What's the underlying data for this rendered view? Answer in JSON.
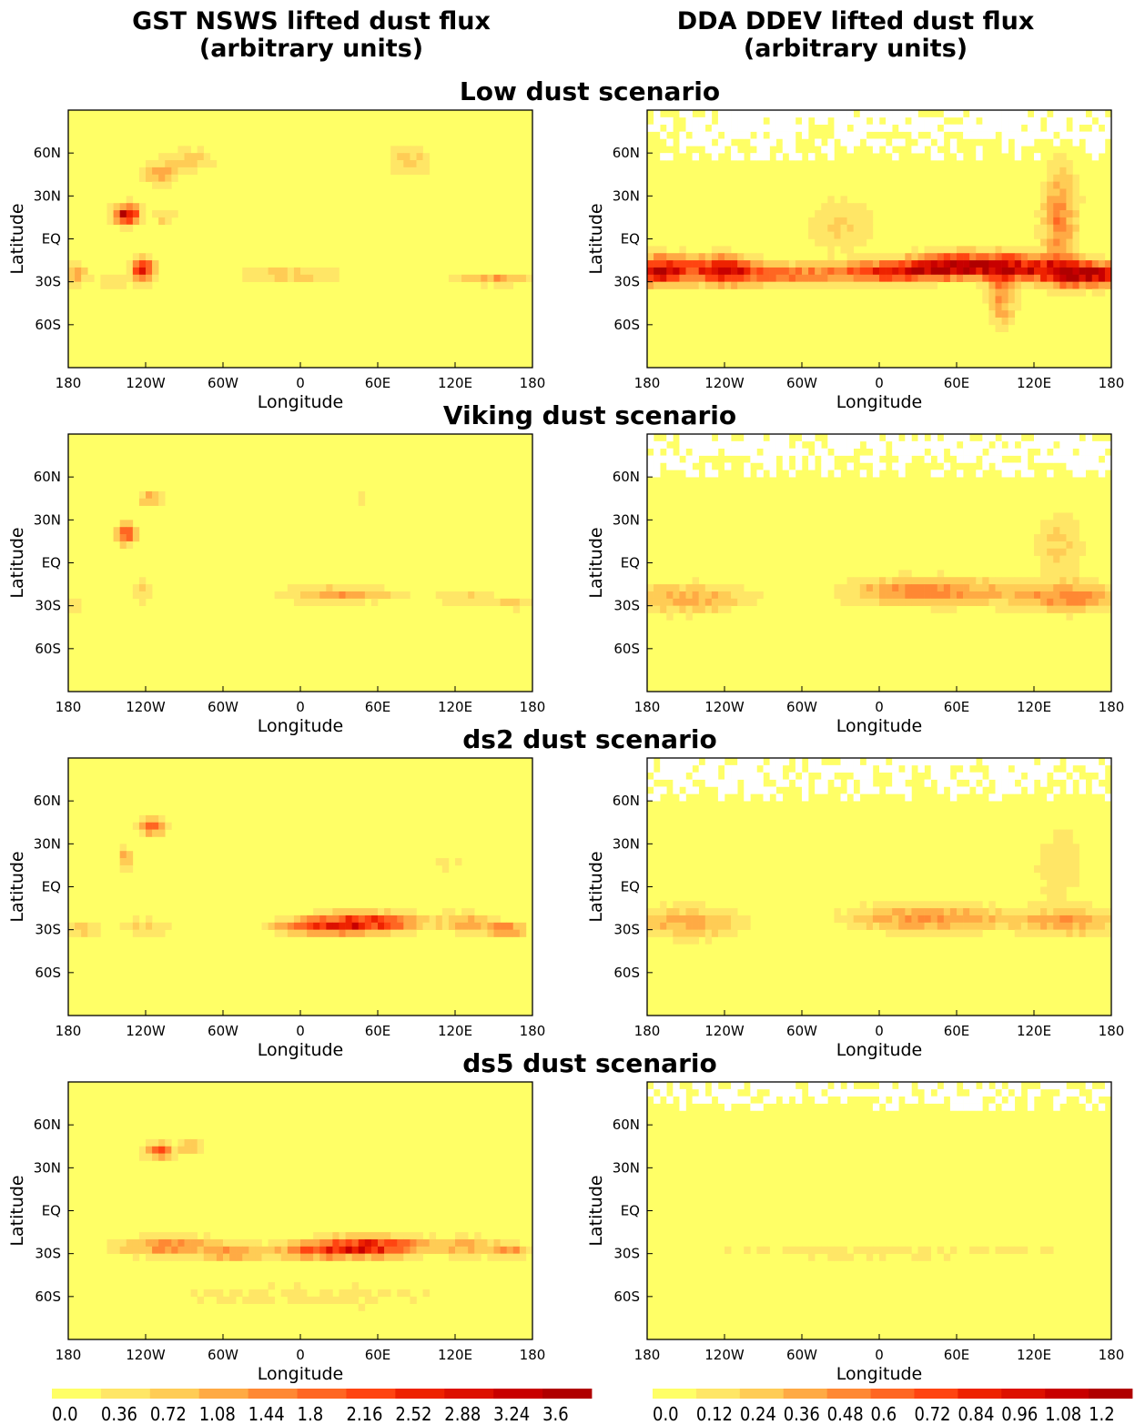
{
  "column_titles": [
    [
      "GST NSWS lifted dust flux",
      "(arbitrary units)"
    ],
    [
      "DDA DDEV lifted dust flux",
      "(arbitrary units)"
    ]
  ],
  "chart_data": {
    "type": "heatmap",
    "rows": [
      {
        "title": "Low dust scenario",
        "panels": [
          {
            "x_ticks": [
              "180",
              "120W",
              "60W",
              "0",
              "60E",
              "120E",
              "180"
            ],
            "y_ticks": [
              "60N",
              "30N",
              "EQ",
              "30S",
              "60S"
            ],
            "xlabel": "Longitude",
            "ylabel": "Latitude",
            "xlim": [
              -180,
              180
            ],
            "ylim": [
              -90,
              90
            ],
            "background_level": 0,
            "blobs": [
              {
                "lon": -135,
                "lat": 17,
                "sx": 7,
                "sy": 5,
                "v": 3.5
              },
              {
                "lon": -122,
                "lat": -22,
                "sx": 6,
                "sy": 6,
                "v": 3.1
              },
              {
                "lon": -110,
                "lat": 45,
                "sx": 10,
                "sy": 5,
                "v": 1.4
              },
              {
                "lon": -85,
                "lat": 55,
                "sx": 15,
                "sy": 6,
                "v": 0.9
              },
              {
                "lon": -175,
                "lat": -25,
                "sx": 8,
                "sy": 5,
                "v": 1.3
              },
              {
                "lon": -145,
                "lat": -30,
                "sx": 8,
                "sy": 3,
                "v": 0.8
              },
              {
                "lon": -105,
                "lat": 15,
                "sx": 6,
                "sy": 3,
                "v": 1.0
              },
              {
                "lon": -10,
                "lat": -25,
                "sx": 30,
                "sy": 4,
                "v": 1.0
              },
              {
                "lon": 85,
                "lat": 55,
                "sx": 12,
                "sy": 8,
                "v": 0.9
              },
              {
                "lon": 150,
                "lat": -28,
                "sx": 25,
                "sy": 3,
                "v": 1.3
              }
            ]
          },
          {
            "x_ticks": [
              "180",
              "120W",
              "60W",
              "0",
              "60E",
              "120E",
              "180"
            ],
            "y_ticks": [
              "60N",
              "30N",
              "EQ",
              "30S",
              "60S"
            ],
            "xlabel": "Longitude",
            "ylabel": "Latitude",
            "xlim": [
              -180,
              180
            ],
            "ylim": [
              -90,
              90
            ],
            "background_level": 0,
            "north_mask_lat": 55,
            "blobs": [
              {
                "lon": -170,
                "lat": -22,
                "sx": 18,
                "sy": 7,
                "v": 1.1
              },
              {
                "lon": -120,
                "lat": -22,
                "sx": 18,
                "sy": 7,
                "v": 1.0
              },
              {
                "lon": -70,
                "lat": -25,
                "sx": 25,
                "sy": 5,
                "v": 0.6
              },
              {
                "lon": 10,
                "lat": -23,
                "sx": 30,
                "sy": 5,
                "v": 1.0
              },
              {
                "lon": 60,
                "lat": -18,
                "sx": 25,
                "sy": 6,
                "v": 1.0
              },
              {
                "lon": 110,
                "lat": -20,
                "sx": 25,
                "sy": 6,
                "v": 0.9
              },
              {
                "lon": 160,
                "lat": -25,
                "sx": 22,
                "sy": 6,
                "v": 1.2
              },
              {
                "lon": 95,
                "lat": -40,
                "sx": 8,
                "sy": 15,
                "v": 0.5
              },
              {
                "lon": 140,
                "lat": 15,
                "sx": 10,
                "sy": 25,
                "v": 0.55
              },
              {
                "lon": -30,
                "lat": 10,
                "sx": 20,
                "sy": 15,
                "v": 0.25
              }
            ]
          }
        ]
      },
      {
        "title": "Viking dust scenario",
        "panels": [
          {
            "x_ticks": [
              "180",
              "120W",
              "60W",
              "0",
              "60E",
              "120E",
              "180"
            ],
            "y_ticks": [
              "60N",
              "30N",
              "EQ",
              "30S",
              "60S"
            ],
            "xlabel": "Longitude",
            "ylabel": "Latitude",
            "xlim": [
              -180,
              180
            ],
            "ylim": [
              -90,
              90
            ],
            "background_level": 0,
            "blobs": [
              {
                "lon": -135,
                "lat": 20,
                "sx": 5,
                "sy": 5,
                "v": 2.6
              },
              {
                "lon": -115,
                "lat": 45,
                "sx": 8,
                "sy": 4,
                "v": 1.3
              },
              {
                "lon": -122,
                "lat": -20,
                "sx": 5,
                "sy": 8,
                "v": 0.7
              },
              {
                "lon": -175,
                "lat": -28,
                "sx": 6,
                "sy": 4,
                "v": 0.7
              },
              {
                "lon": 30,
                "lat": -22,
                "sx": 35,
                "sy": 4,
                "v": 1.3
              },
              {
                "lon": 130,
                "lat": -25,
                "sx": 15,
                "sy": 4,
                "v": 0.8
              },
              {
                "lon": 165,
                "lat": -28,
                "sx": 10,
                "sy": 3,
                "v": 1.0
              },
              {
                "lon": 50,
                "lat": 45,
                "sx": 5,
                "sy": 3,
                "v": 0.6
              }
            ]
          },
          {
            "x_ticks": [
              "180",
              "120W",
              "60W",
              "0",
              "60E",
              "120E",
              "180"
            ],
            "y_ticks": [
              "60N",
              "30N",
              "EQ",
              "30S",
              "60S"
            ],
            "xlabel": "Longitude",
            "ylabel": "Latitude",
            "xlim": [
              -180,
              180
            ],
            "ylim": [
              -90,
              90
            ],
            "background_level": 0,
            "north_mask_lat": 60,
            "blobs": [
              {
                "lon": -150,
                "lat": -25,
                "sx": 35,
                "sy": 8,
                "v": 0.4
              },
              {
                "lon": 40,
                "lat": -20,
                "sx": 45,
                "sy": 7,
                "v": 0.6
              },
              {
                "lon": 150,
                "lat": -25,
                "sx": 30,
                "sy": 7,
                "v": 0.5
              },
              {
                "lon": 140,
                "lat": 10,
                "sx": 15,
                "sy": 20,
                "v": 0.25
              }
            ]
          }
        ]
      },
      {
        "title": "ds2 dust scenario",
        "panels": [
          {
            "x_ticks": [
              "180",
              "120W",
              "60W",
              "0",
              "60E",
              "120E",
              "180"
            ],
            "y_ticks": [
              "60N",
              "30N",
              "EQ",
              "30S",
              "60S"
            ],
            "xlabel": "Longitude",
            "ylabel": "Latitude",
            "xlim": [
              -180,
              180
            ],
            "ylim": [
              -90,
              90
            ],
            "background_level": 0,
            "blobs": [
              {
                "lon": -115,
                "lat": 42,
                "sx": 7,
                "sy": 4,
                "v": 2.3
              },
              {
                "lon": -135,
                "lat": 20,
                "sx": 4,
                "sy": 5,
                "v": 1.4
              },
              {
                "lon": 50,
                "lat": -25,
                "sx": 30,
                "sy": 5,
                "v": 2.6
              },
              {
                "lon": 10,
                "lat": -28,
                "sx": 25,
                "sy": 4,
                "v": 1.4
              },
              {
                "lon": 130,
                "lat": -25,
                "sx": 15,
                "sy": 5,
                "v": 1.2
              },
              {
                "lon": 160,
                "lat": -30,
                "sx": 10,
                "sy": 3,
                "v": 2.0
              },
              {
                "lon": -170,
                "lat": -30,
                "sx": 10,
                "sy": 5,
                "v": 0.8
              },
              {
                "lon": -120,
                "lat": -28,
                "sx": 15,
                "sy": 5,
                "v": 0.8
              },
              {
                "lon": 115,
                "lat": 15,
                "sx": 15,
                "sy": 15,
                "v": 0.4
              }
            ]
          },
          {
            "x_ticks": [
              "180",
              "120W",
              "60W",
              "0",
              "60E",
              "120E",
              "180"
            ],
            "y_ticks": [
              "60N",
              "30N",
              "EQ",
              "30S",
              "60S"
            ],
            "xlabel": "Longitude",
            "ylabel": "Latitude",
            "xlim": [
              -180,
              180
            ],
            "ylim": [
              -90,
              90
            ],
            "background_level": 0,
            "north_mask_lat": 60,
            "blobs": [
              {
                "lon": -150,
                "lat": -25,
                "sx": 30,
                "sy": 8,
                "v": 0.45
              },
              {
                "lon": 40,
                "lat": -22,
                "sx": 45,
                "sy": 7,
                "v": 0.5
              },
              {
                "lon": 150,
                "lat": -25,
                "sx": 30,
                "sy": 7,
                "v": 0.4
              },
              {
                "lon": 140,
                "lat": 15,
                "sx": 15,
                "sy": 20,
                "v": 0.22
              }
            ]
          }
        ]
      },
      {
        "title": "ds5 dust scenario",
        "panels": [
          {
            "x_ticks": [
              "180",
              "120W",
              "60W",
              "0",
              "60E",
              "120E",
              "180"
            ],
            "y_ticks": [
              "60N",
              "30N",
              "EQ",
              "30S",
              "60S"
            ],
            "xlabel": "Longitude",
            "ylabel": "Latitude",
            "xlim": [
              -180,
              180
            ],
            "ylim": [
              -90,
              90
            ],
            "background_level": 0,
            "blobs": [
              {
                "lon": -110,
                "lat": 42,
                "sx": 8,
                "sy": 4,
                "v": 2.2
              },
              {
                "lon": -85,
                "lat": 45,
                "sx": 6,
                "sy": 4,
                "v": 1.3
              },
              {
                "lon": 55,
                "lat": -25,
                "sx": 30,
                "sy": 5,
                "v": 2.8
              },
              {
                "lon": 10,
                "lat": -28,
                "sx": 25,
                "sy": 4,
                "v": 1.5
              },
              {
                "lon": -100,
                "lat": -25,
                "sx": 30,
                "sy": 5,
                "v": 1.6
              },
              {
                "lon": -50,
                "lat": -30,
                "sx": 15,
                "sy": 4,
                "v": 1.2
              },
              {
                "lon": 130,
                "lat": -25,
                "sx": 15,
                "sy": 5,
                "v": 1.2
              },
              {
                "lon": 165,
                "lat": -28,
                "sx": 10,
                "sy": 4,
                "v": 1.4
              },
              {
                "lon": 0,
                "lat": -60,
                "sx": 150,
                "sy": 12,
                "v": 0.4
              }
            ]
          },
          {
            "x_ticks": [
              "180",
              "120W",
              "60W",
              "0",
              "60E",
              "120E",
              "180"
            ],
            "y_ticks": [
              "60N",
              "30N",
              "EQ",
              "30S",
              "60S"
            ],
            "xlabel": "Longitude",
            "ylabel": "Latitude",
            "xlim": [
              -180,
              180
            ],
            "ylim": [
              -90,
              90
            ],
            "background_level": 0,
            "north_mask_lat": 70,
            "blobs": [
              {
                "lon": 0,
                "lat": -28,
                "sx": 160,
                "sy": 6,
                "v": 0.15
              }
            ]
          }
        ]
      }
    ],
    "colorbars": [
      {
        "ticks": [
          "0.0",
          "0.36",
          "0.72",
          "1.08",
          "1.44",
          "1.8",
          "2.16",
          "2.52",
          "2.88",
          "3.24",
          "3.6"
        ],
        "levels": [
          0,
          0.36,
          0.72,
          1.08,
          1.44,
          1.8,
          2.16,
          2.52,
          2.88,
          3.24,
          3.6,
          3.96
        ]
      },
      {
        "ticks": [
          "0.0",
          "0.12",
          "0.24",
          "0.36",
          "0.48",
          "0.6",
          "0.72",
          "0.84",
          "0.96",
          "1.08",
          "1.2"
        ],
        "levels": [
          0,
          0.12,
          0.24,
          0.36,
          0.48,
          0.6,
          0.72,
          0.84,
          0.96,
          1.08,
          1.2,
          1.32
        ]
      }
    ],
    "colors": [
      "#ffff66",
      "#ffe666",
      "#ffcc55",
      "#ffaa44",
      "#ff8833",
      "#ff6622",
      "#ff4411",
      "#ee2200",
      "#dd1100",
      "#c80000",
      "#b00000"
    ]
  }
}
